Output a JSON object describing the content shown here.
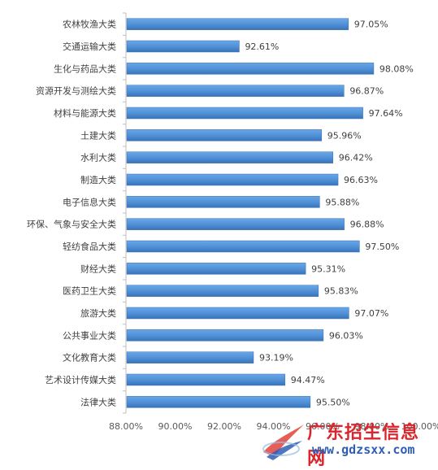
{
  "chart_data": {
    "type": "bar",
    "orientation": "horizontal",
    "categories": [
      "农林牧渔大类",
      "交通运输大类",
      "生化与药品大类",
      "资源开发与测绘大类",
      "材料与能源大类",
      "土建大类",
      "水利大类",
      "制造大类",
      "电子信息大类",
      "环保、气象与安全大类",
      "轻纺食品大类",
      "财经大类",
      "医药卫生大类",
      "旅游大类",
      "公共事业大类",
      "文化教育大类",
      "艺术设计传媒大类",
      "法律大类"
    ],
    "values": [
      97.05,
      92.61,
      98.08,
      96.87,
      97.64,
      95.96,
      96.42,
      96.63,
      95.88,
      96.88,
      97.5,
      95.31,
      95.83,
      97.07,
      96.03,
      93.19,
      94.47,
      95.5
    ],
    "value_labels": [
      "97.05%",
      "92.61%",
      "98.08%",
      "96.87%",
      "97.64%",
      "95.96%",
      "96.42%",
      "96.63%",
      "95.88%",
      "96.88%",
      "97.50%",
      "95.31%",
      "95.83%",
      "97.07%",
      "96.03%",
      "93.19%",
      "94.47%",
      "95.50%"
    ],
    "xlim": [
      88,
      100
    ],
    "x_ticks": [
      88,
      90,
      92,
      94,
      96,
      98,
      100
    ],
    "x_tick_labels": [
      "88.00%",
      "90.00%",
      "92.00%",
      "94.00%",
      "96.00%",
      "98.00%",
      "100.00%"
    ],
    "grid": false,
    "bar_color": "#4f8fd6",
    "bar_color_dark": "#3a73b8"
  },
  "watermark": {
    "title": "广东招生信息网",
    "url": "www.gdzsxx.com",
    "color_title": "#d9262c",
    "color_url": "#2f5fb5",
    "icon": "logo-swoosh-icon"
  }
}
